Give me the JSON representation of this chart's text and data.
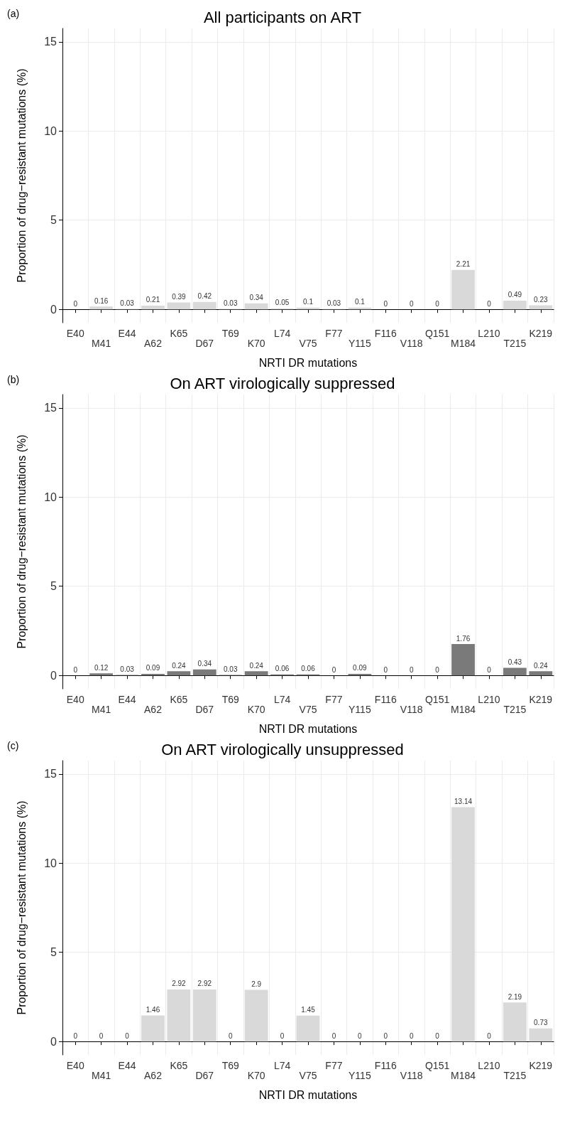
{
  "chart_data": [
    {
      "type": "bar",
      "title": "All participants on ART",
      "annotations": [
        "(a)"
      ],
      "xlabel": "NRTI DR mutations",
      "ylabel": "Proportion of drug−resistant mutations (%)",
      "categories": [
        "E40",
        "M41",
        "E44",
        "A62",
        "K65",
        "D67",
        "T69",
        "K70",
        "L74",
        "V75",
        "F77",
        "Y115",
        "F116",
        "V118",
        "Q151",
        "M184",
        "L210",
        "T215",
        "K219"
      ],
      "values": [
        0,
        0.16,
        0.03,
        0.21,
        0.39,
        0.42,
        0.03,
        0.34,
        0.05,
        0.1,
        0.03,
        0.1,
        0,
        0,
        0,
        2.21,
        0,
        0.49,
        0.23
      ],
      "color": "#d9d9d9",
      "ylim": [
        -0.75,
        15.75
      ],
      "yticks": [
        0,
        5,
        10,
        15
      ],
      "grid": true,
      "data_labels": true
    },
    {
      "type": "bar",
      "title": "On ART virologically suppressed",
      "annotations": [
        "(b)"
      ],
      "xlabel": "NRTI DR mutations",
      "ylabel": "Proportion of drug−resistant mutations (%)",
      "categories": [
        "E40",
        "M41",
        "E44",
        "A62",
        "K65",
        "D67",
        "T69",
        "K70",
        "L74",
        "V75",
        "F77",
        "Y115",
        "F116",
        "V118",
        "Q151",
        "M184",
        "L210",
        "T215",
        "K219"
      ],
      "values": [
        0,
        0.12,
        0.03,
        0.09,
        0.24,
        0.34,
        0.03,
        0.24,
        0.06,
        0.06,
        0,
        0.09,
        0,
        0,
        0,
        1.76,
        0,
        0.43,
        0.24
      ],
      "color": "#7a7a7a",
      "ylim": [
        -0.75,
        15.75
      ],
      "yticks": [
        0,
        5,
        10,
        15
      ],
      "grid": true,
      "data_labels": true
    },
    {
      "type": "bar",
      "title": "On ART virologically unsuppressed",
      "annotations": [
        "(c)"
      ],
      "xlabel": "NRTI DR mutations",
      "ylabel": "Proportion of drug−resistant mutations (%)",
      "categories": [
        "E40",
        "M41",
        "E44",
        "A62",
        "K65",
        "D67",
        "T69",
        "K70",
        "L74",
        "V75",
        "F77",
        "Y115",
        "F116",
        "V118",
        "Q151",
        "M184",
        "L210",
        "T215",
        "K219"
      ],
      "values": [
        0,
        0,
        0,
        1.46,
        2.92,
        2.92,
        0,
        2.9,
        0,
        1.45,
        0,
        0,
        0,
        0,
        0,
        13.14,
        0,
        2.19,
        0.73
      ],
      "color": "#d9d9d9",
      "ylim": [
        -0.75,
        15.75
      ],
      "yticks": [
        0,
        5,
        10,
        15
      ],
      "grid": true,
      "data_labels": true
    }
  ]
}
